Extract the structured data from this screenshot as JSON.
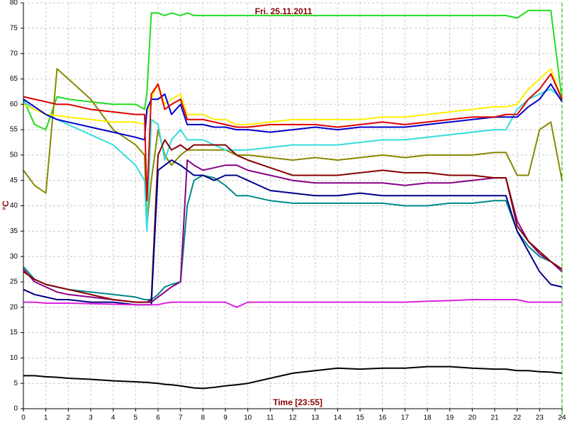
{
  "chart_data": {
    "type": "line",
    "title": "Fri. 25.11.2011",
    "x_label": "Time [23:55]",
    "y_label": "°C",
    "xlim": [
      0,
      24
    ],
    "ylim": [
      0,
      80
    ],
    "grid": true,
    "xticks": [
      0,
      1,
      2,
      3,
      4,
      5,
      6,
      7,
      8,
      9,
      10,
      11,
      12,
      13,
      14,
      15,
      16,
      17,
      18,
      19,
      20,
      21,
      22,
      23,
      24
    ],
    "yticks": [
      0,
      5,
      10,
      15,
      20,
      25,
      30,
      35,
      40,
      45,
      50,
      55,
      60,
      65,
      70,
      75,
      80
    ],
    "x": [
      0,
      0.5,
      1,
      1.5,
      2,
      3,
      4,
      5,
      5.4,
      5.5,
      5.7,
      6,
      6.3,
      6.6,
      7,
      7.3,
      7.6,
      8,
      8.5,
      9,
      9.5,
      10,
      11,
      12,
      13,
      14,
      15,
      16,
      17,
      18,
      19,
      20,
      21,
      21.5,
      22,
      22.5,
      23,
      23.5,
      24
    ],
    "series": [
      {
        "color": "#22dd22",
        "values": [
          61,
          56,
          55,
          61.5,
          61,
          60.5,
          60,
          60,
          59,
          62,
          78,
          78,
          77.5,
          78,
          77.5,
          78,
          77.5,
          77.5,
          77.5,
          77.5,
          77.5,
          77.5,
          77.5,
          77.5,
          77.5,
          77.5,
          77.5,
          77.5,
          77.5,
          77.5,
          77.5,
          77.5,
          77.5,
          77.5,
          77,
          78.5,
          78.5,
          78.5,
          61
        ]
      },
      {
        "color": "#888800",
        "values": [
          47,
          44,
          42.5,
          67,
          65,
          61,
          55,
          52,
          50,
          36,
          45,
          55,
          50,
          48,
          50,
          51,
          51,
          51,
          51,
          51,
          50,
          50,
          49.5,
          49,
          49.5,
          49,
          49.5,
          50,
          49.5,
          50,
          50,
          50,
          50.5,
          50.5,
          46,
          46,
          55,
          56.5,
          45
        ]
      },
      {
        "color": "#33dddd",
        "values": [
          60.5,
          59,
          58,
          57,
          56,
          54,
          52,
          48,
          45,
          35,
          57,
          56,
          49,
          53,
          55,
          53,
          53,
          53,
          52,
          51,
          51,
          51,
          51.5,
          52,
          52,
          52,
          52.5,
          53,
          53,
          53.5,
          54,
          54.5,
          55,
          55,
          59,
          61,
          62,
          63,
          61
        ]
      },
      {
        "color": "#ffee00",
        "values": [
          60,
          59,
          58,
          57.8,
          57.5,
          57,
          56.5,
          56.5,
          56,
          58,
          61,
          64,
          60,
          61,
          62,
          58,
          58,
          58,
          57,
          57,
          56,
          56,
          56.5,
          57,
          57,
          57,
          57,
          57.5,
          57.5,
          58,
          58.5,
          59,
          59.5,
          59.5,
          60,
          63,
          65,
          67,
          61
        ]
      },
      {
        "color": "#0000cc",
        "values": [
          61,
          59.5,
          58,
          57,
          56.5,
          55.5,
          54.5,
          53.5,
          53,
          59,
          61,
          61,
          62,
          58,
          60,
          56,
          56,
          56,
          55.5,
          55.5,
          55,
          55,
          54.5,
          55,
          55.5,
          55,
          55.5,
          55.5,
          55.5,
          56,
          56.5,
          57,
          57.5,
          57.5,
          57.5,
          59.5,
          61,
          64,
          60.5
        ]
      },
      {
        "color": "#dd0000",
        "values": [
          61.5,
          61,
          60.5,
          60,
          60,
          59,
          58.5,
          58,
          58,
          41,
          62,
          64,
          59,
          60,
          61,
          57,
          57,
          57,
          56.5,
          56,
          55.5,
          55.5,
          56,
          56,
          56,
          55.5,
          56,
          56.5,
          56,
          56.5,
          57,
          57.5,
          57.5,
          58,
          58,
          61,
          63,
          66,
          61
        ]
      },
      {
        "color": "#008888",
        "values": [
          28,
          25.5,
          24.5,
          24,
          23.5,
          23,
          22.5,
          22,
          21.5,
          21.5,
          21.5,
          22.5,
          24,
          24.5,
          25,
          40,
          45,
          46,
          45.5,
          44,
          42,
          42,
          41,
          40.5,
          40.5,
          40.5,
          40.5,
          40.5,
          40,
          40,
          40.5,
          40.5,
          41,
          41,
          35,
          32,
          30,
          29,
          27.5
        ]
      },
      {
        "color": "#880088",
        "values": [
          27.5,
          25,
          24,
          23,
          22.5,
          22,
          21.5,
          21,
          21,
          21,
          21,
          22,
          23,
          24,
          25,
          49,
          48,
          47,
          47.5,
          48,
          48,
          47,
          46,
          45,
          44.5,
          44.5,
          44.5,
          44.5,
          44,
          44.5,
          44.5,
          45,
          45.5,
          45.5,
          37,
          33,
          30.5,
          29,
          27
        ]
      },
      {
        "color": "#880000",
        "values": [
          27,
          25.5,
          24.5,
          24,
          23.5,
          22.5,
          21.5,
          21,
          21,
          21,
          21.5,
          50,
          53,
          51,
          52,
          51,
          52,
          52,
          52,
          52,
          50,
          49,
          47.5,
          46,
          46,
          46,
          46.5,
          47,
          46.5,
          46.5,
          46,
          46,
          45.5,
          45.5,
          36,
          33,
          31,
          29,
          27.5
        ]
      },
      {
        "color": "#000088",
        "values": [
          23.5,
          22.5,
          22,
          21.5,
          21.5,
          21,
          21,
          20.5,
          20.5,
          20.5,
          20.5,
          47,
          48,
          49,
          48,
          47,
          46,
          46,
          45,
          46,
          46,
          45,
          43,
          42.5,
          42,
          42,
          42.5,
          42,
          42,
          42,
          42,
          42,
          42,
          42,
          35,
          31,
          27,
          24.5,
          24
        ]
      },
      {
        "color": "#dd22dd",
        "values": [
          21,
          21,
          20.8,
          20.8,
          20.8,
          20.7,
          20.6,
          20.5,
          20.5,
          20.5,
          20.5,
          20.5,
          20.8,
          21,
          21,
          21,
          21,
          21,
          21,
          21,
          20,
          21,
          21,
          21,
          21,
          21,
          21,
          21,
          21,
          21.2,
          21.3,
          21.5,
          21.5,
          21.5,
          21.5,
          21,
          21,
          21,
          21
        ]
      },
      {
        "color": "#000000",
        "values": [
          6.5,
          6.5,
          6.3,
          6.2,
          6,
          5.8,
          5.5,
          5.3,
          5.2,
          5.2,
          5.1,
          5,
          4.8,
          4.7,
          4.5,
          4.3,
          4.1,
          4,
          4.2,
          4.5,
          4.7,
          5,
          6,
          7,
          7.5,
          8,
          7.8,
          8,
          8,
          8.3,
          8.3,
          8,
          7.8,
          7.8,
          7.5,
          7.5,
          7.3,
          7.2,
          7
        ]
      }
    ]
  }
}
